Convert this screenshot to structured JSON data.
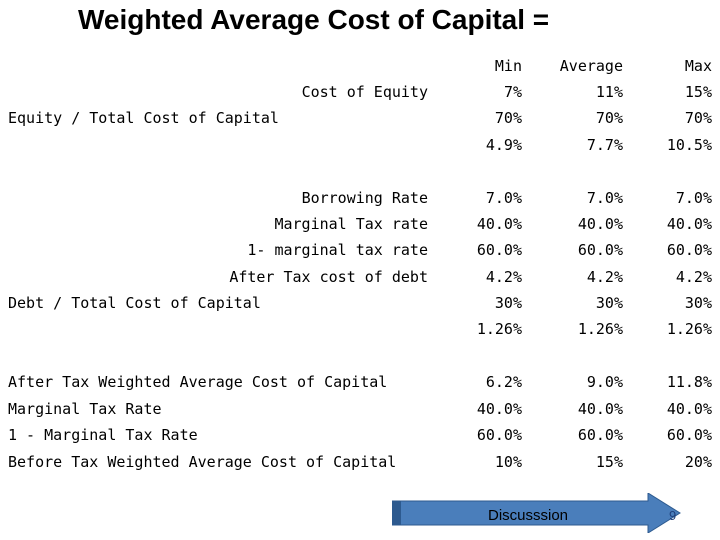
{
  "title": "Weighted Average Cost of  Capital =",
  "headers": {
    "min": "Min",
    "avg": "Average",
    "max": "Max"
  },
  "rows": [
    {
      "label": "Cost of Equity",
      "min": "7%",
      "avg": "11%",
      "max": "15%"
    },
    {
      "label": "Equity / Total Cost of Capital",
      "min": "70%",
      "avg": "70%",
      "max": "70%"
    },
    {
      "label": "",
      "min": "4.9%",
      "avg": "7.7%",
      "max": "10.5%"
    },
    {
      "label": "Borrowing Rate",
      "min": "7.0%",
      "avg": "7.0%",
      "max": "7.0%"
    },
    {
      "label": "Marginal Tax rate",
      "min": "40.0%",
      "avg": "40.0%",
      "max": "40.0%"
    },
    {
      "label": "1- marginal tax rate",
      "min": "60.0%",
      "avg": "60.0%",
      "max": "60.0%"
    },
    {
      "label": "After Tax cost of debt",
      "min": "4.2%",
      "avg": "4.2%",
      "max": "4.2%"
    },
    {
      "label": "Debt / Total Cost of Capital",
      "min": "30%",
      "avg": "30%",
      "max": "30%"
    },
    {
      "label": "",
      "min": "1.26%",
      "avg": "1.26%",
      "max": "1.26%"
    },
    {
      "label": "After Tax Weighted Average Cost of Capital",
      "min": "6.2%",
      "avg": "9.0%",
      "max": "11.8%"
    },
    {
      "label": "Marginal Tax Rate",
      "min": "40.0%",
      "avg": "40.0%",
      "max": "40.0%"
    },
    {
      "label": "1 - Marginal Tax Rate",
      "min": "60.0%",
      "avg": "60.0%",
      "max": "60.0%"
    },
    {
      "label": "Before Tax Weighted Average Cost of Capital",
      "min": "10%",
      "avg": "15%",
      "max": "20%"
    }
  ],
  "discussion_button": {
    "label": "Discusssion",
    "fill": "#4a7ebb",
    "edge": "#2d5a8f"
  },
  "page_number": "9"
}
